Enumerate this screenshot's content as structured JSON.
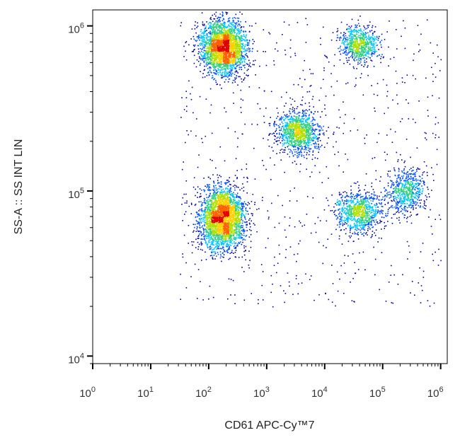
{
  "chart_data": {
    "type": "scatter",
    "style": "density",
    "xlabel": "CD61 APC-Cy™7",
    "ylabel": "SS-A :: SS INT LIN",
    "x_scale": "log",
    "y_scale": "log",
    "xlim": [
      1,
      1300000
    ],
    "ylim": [
      9000,
      1250000
    ],
    "x_ticks": [
      {
        "value": 1,
        "base": "10",
        "exp": "0"
      },
      {
        "value": 10,
        "base": "10",
        "exp": "1"
      },
      {
        "value": 100,
        "base": "10",
        "exp": "2"
      },
      {
        "value": 1000,
        "base": "10",
        "exp": "3"
      },
      {
        "value": 10000,
        "base": "10",
        "exp": "4"
      },
      {
        "value": 100000,
        "base": "10",
        "exp": "5"
      },
      {
        "value": 1000000,
        "base": "10",
        "exp": "6"
      }
    ],
    "y_ticks": [
      {
        "value": 10000,
        "base": "10",
        "exp": "4"
      },
      {
        "value": 100000,
        "base": "10",
        "exp": "5"
      },
      {
        "value": 1000000,
        "base": "10",
        "exp": "6"
      }
    ],
    "grid": false,
    "legend": false,
    "colormap": [
      "#0000a0",
      "#0050ff",
      "#00c8ff",
      "#30d080",
      "#b0e000",
      "#ffd000",
      "#ff6000",
      "#e00000"
    ],
    "populations": [
      {
        "x": 180,
        "y": 750000,
        "weight": 0.28
      },
      {
        "x": 170,
        "y": 70000,
        "weight": 0.3
      },
      {
        "x": 3500,
        "y": 230000,
        "weight": 0.12
      },
      {
        "x": 40000,
        "y": 780000,
        "weight": 0.08
      },
      {
        "x": 40000,
        "y": 75000,
        "weight": 0.1
      },
      {
        "x": 250000,
        "y": 100000,
        "weight": 0.07
      }
    ]
  }
}
